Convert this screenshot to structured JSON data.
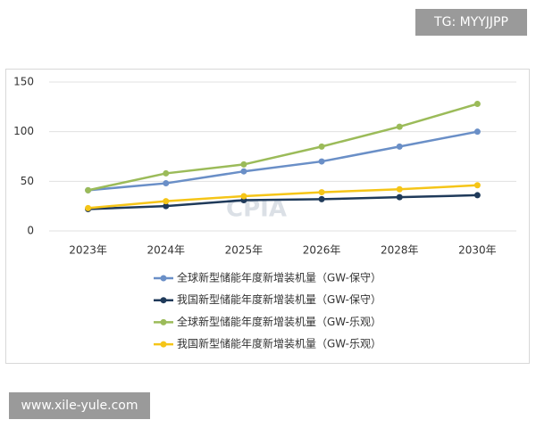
{
  "chart_data": {
    "type": "line",
    "categories": [
      "2023年",
      "2024年",
      "2025年",
      "2026年",
      "2028年",
      "2030年"
    ],
    "series": [
      {
        "name": "全球新型储能年度新增装机量（GW-保守）",
        "color": "#6a8fc7",
        "values": [
          41,
          48,
          60,
          70,
          85,
          100
        ]
      },
      {
        "name": "我国新型储能年度新增装机量（GW-保守）",
        "color": "#1f3a5a",
        "values": [
          22,
          25,
          31,
          32,
          34,
          36
        ]
      },
      {
        "name": "全球新型储能年度新增装机量（GW-乐观）",
        "color": "#9bbb59",
        "values": [
          41,
          58,
          67,
          85,
          105,
          128
        ]
      },
      {
        "name": "我国新型储能年度新增装机量（GW-乐观）",
        "color": "#f5c518",
        "values": [
          23,
          30,
          35,
          39,
          42,
          46
        ]
      }
    ],
    "ylim": [
      0,
      150
    ],
    "yticks": [
      0,
      50,
      100,
      150
    ],
    "grid": true,
    "legend": "bottom",
    "watermark": "CPIA"
  },
  "overlay": {
    "top_right": "TG: MYYJJPP",
    "bottom_left": "www.xile-yule.com"
  }
}
